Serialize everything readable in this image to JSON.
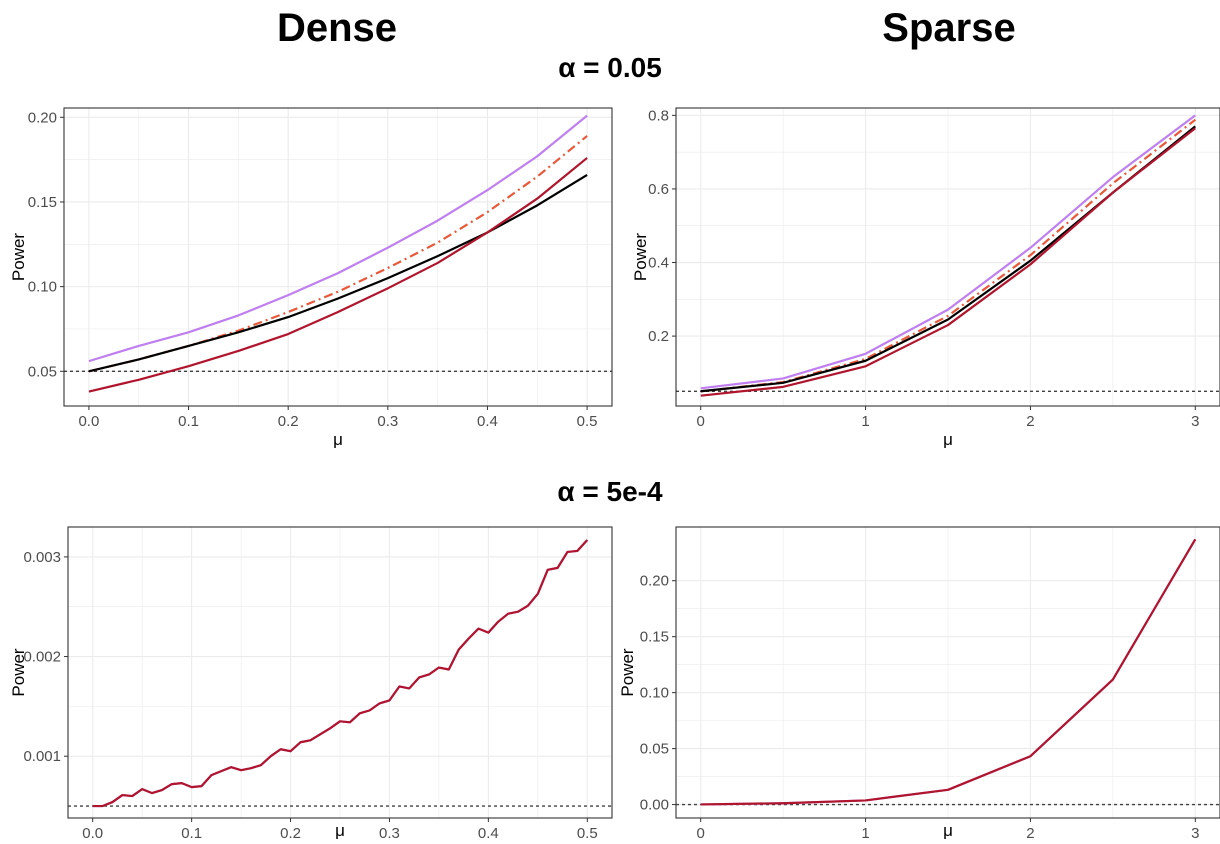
{
  "headers": {
    "left": "Dense",
    "right": "Sparse",
    "row1": "α = 0.05",
    "row2": "α = 5e-4"
  },
  "colors": {
    "purple": "#bf7ff0",
    "orange": "#e8583a",
    "black": "#000000",
    "red": "#b0152d",
    "grid": "#ebebeb",
    "threshold": "#404040"
  },
  "chart_data": [
    {
      "type": "line",
      "xlabel": "μ",
      "ylabel": "Power",
      "xlim": [
        -0.025,
        0.525
      ],
      "ylim": [
        0.0295,
        0.2055
      ],
      "xticks": [
        0.0,
        0.1,
        0.2,
        0.3,
        0.4,
        0.5
      ],
      "xtick_labels": [
        "0.0",
        "0.1",
        "0.2",
        "0.3",
        "0.4",
        "0.5"
      ],
      "yticks": [
        0.05,
        0.1,
        0.15,
        0.2
      ],
      "ytick_labels": [
        "0.05",
        "0.10",
        "0.15",
        "0.20"
      ],
      "hline": 0.05,
      "x": [
        0.0,
        0.05,
        0.1,
        0.15,
        0.2,
        0.25,
        0.3,
        0.35,
        0.4,
        0.45,
        0.5
      ],
      "series": [
        {
          "color": "purple",
          "dash": "solid",
          "values": [
            0.056,
            0.065,
            0.073,
            0.083,
            0.095,
            0.108,
            0.123,
            0.139,
            0.157,
            0.177,
            0.201
          ]
        },
        {
          "color": "orange",
          "dash": "dashdot",
          "values": [
            0.05,
            0.057,
            0.065,
            0.074,
            0.085,
            0.097,
            0.111,
            0.126,
            0.144,
            0.165,
            0.189
          ]
        },
        {
          "color": "black",
          "dash": "solid",
          "values": [
            0.05,
            0.057,
            0.065,
            0.073,
            0.082,
            0.093,
            0.105,
            0.118,
            0.132,
            0.148,
            0.166
          ]
        },
        {
          "color": "red",
          "dash": "solid",
          "values": [
            0.038,
            0.045,
            0.053,
            0.062,
            0.072,
            0.085,
            0.099,
            0.114,
            0.132,
            0.152,
            0.176
          ]
        }
      ]
    },
    {
      "type": "line",
      "xlabel": "μ",
      "ylabel": "Power",
      "xlim": [
        -0.15,
        3.15
      ],
      "ylim": [
        0.01,
        0.82
      ],
      "xticks": [
        0,
        1,
        2,
        3
      ],
      "xtick_labels": [
        "0",
        "1",
        "2",
        "3"
      ],
      "yticks": [
        0.2,
        0.4,
        0.6,
        0.8
      ],
      "ytick_labels": [
        "0.2",
        "0.4",
        "0.6",
        "0.8"
      ],
      "hline": 0.05,
      "x": [
        0,
        0.5,
        1,
        1.5,
        2,
        2.5,
        3
      ],
      "series": [
        {
          "color": "purple",
          "dash": "solid",
          "values": [
            0.058,
            0.085,
            0.152,
            0.272,
            0.44,
            0.632,
            0.8
          ]
        },
        {
          "color": "orange",
          "dash": "dashdot",
          "values": [
            0.05,
            0.075,
            0.138,
            0.255,
            0.42,
            0.615,
            0.788
          ]
        },
        {
          "color": "black",
          "dash": "solid",
          "values": [
            0.05,
            0.073,
            0.133,
            0.245,
            0.405,
            0.59,
            0.77
          ]
        },
        {
          "color": "red",
          "dash": "solid",
          "values": [
            0.038,
            0.062,
            0.118,
            0.23,
            0.395,
            0.59,
            0.765
          ]
        }
      ]
    },
    {
      "type": "line",
      "xlabel": "μ",
      "ylabel": "Power",
      "xlim": [
        -0.025,
        0.525
      ],
      "ylim": [
        0.00038,
        0.0033
      ],
      "xticks": [
        0.0,
        0.1,
        0.2,
        0.3,
        0.4,
        0.5
      ],
      "xtick_labels": [
        "0.0",
        "0.1",
        "0.2",
        "0.3",
        "0.4",
        "0.5"
      ],
      "yticks": [
        0.001,
        0.002,
        0.003
      ],
      "ytick_labels": [
        "0.001",
        "0.002",
        "0.003"
      ],
      "hline": 0.0005,
      "x": [
        0.0,
        0.01,
        0.02,
        0.03,
        0.04,
        0.05,
        0.06,
        0.07,
        0.08,
        0.09,
        0.1,
        0.11,
        0.12,
        0.13,
        0.14,
        0.15,
        0.16,
        0.17,
        0.18,
        0.19,
        0.2,
        0.21,
        0.22,
        0.23,
        0.24,
        0.25,
        0.26,
        0.27,
        0.28,
        0.29,
        0.3,
        0.31,
        0.32,
        0.33,
        0.34,
        0.35,
        0.36,
        0.37,
        0.38,
        0.39,
        0.4,
        0.41,
        0.42,
        0.43,
        0.44,
        0.45,
        0.46,
        0.47,
        0.48,
        0.49,
        0.5
      ],
      "series": [
        {
          "color": "purple",
          "dash": "solid",
          "values": [
            0.0005,
            0.0005,
            0.00054,
            0.00061,
            0.0006,
            0.00067,
            0.00063,
            0.00066,
            0.00072,
            0.00073,
            0.00069,
            0.0007,
            0.00081,
            0.00085,
            0.00089,
            0.00086,
            0.00088,
            0.00091,
            0.001,
            0.00107,
            0.00105,
            0.00114,
            0.00116,
            0.00122,
            0.00128,
            0.00135,
            0.00134,
            0.00143,
            0.00146,
            0.00153,
            0.00156,
            0.0017,
            0.00168,
            0.00179,
            0.00182,
            0.00189,
            0.00187,
            0.00207,
            0.00218,
            0.00228,
            0.00224,
            0.00235,
            0.00243,
            0.00245,
            0.00251,
            0.00263,
            0.00287,
            0.00289,
            0.00305,
            0.00306,
            0.00317
          ]
        },
        {
          "color": "red",
          "dash": "solid",
          "values": [
            0.0005,
            0.0005,
            0.00054,
            0.00061,
            0.0006,
            0.00067,
            0.00063,
            0.00066,
            0.00072,
            0.00073,
            0.00069,
            0.0007,
            0.00081,
            0.00085,
            0.00089,
            0.00086,
            0.00088,
            0.00091,
            0.001,
            0.00107,
            0.00105,
            0.00114,
            0.00116,
            0.00122,
            0.00128,
            0.00135,
            0.00134,
            0.00143,
            0.00146,
            0.00153,
            0.00156,
            0.0017,
            0.00168,
            0.00179,
            0.00182,
            0.00189,
            0.00187,
            0.00207,
            0.00218,
            0.00228,
            0.00224,
            0.00235,
            0.00243,
            0.00245,
            0.00251,
            0.00263,
            0.00287,
            0.00289,
            0.00305,
            0.00306,
            0.00317
          ]
        }
      ]
    },
    {
      "type": "line",
      "xlabel": "μ",
      "ylabel": "Power",
      "xlim": [
        -0.15,
        3.15
      ],
      "ylim": [
        -0.012,
        0.248
      ],
      "xticks": [
        0,
        1,
        2,
        3
      ],
      "xtick_labels": [
        "0",
        "1",
        "2",
        "3"
      ],
      "yticks": [
        0.0,
        0.05,
        0.1,
        0.15,
        0.2
      ],
      "ytick_labels": [
        "0.00",
        "0.05",
        "0.10",
        "0.15",
        "0.20"
      ],
      "hline": 0.0,
      "x": [
        0,
        0.5,
        1,
        1.5,
        2,
        2.5,
        3
      ],
      "series": [
        {
          "color": "purple",
          "dash": "solid",
          "values": [
            0.0001,
            0.0012,
            0.0037,
            0.0132,
            0.0432,
            0.1117,
            0.237
          ]
        },
        {
          "color": "red",
          "dash": "solid",
          "values": [
            0.0001,
            0.0012,
            0.0037,
            0.0132,
            0.0432,
            0.1117,
            0.237
          ]
        }
      ]
    }
  ]
}
